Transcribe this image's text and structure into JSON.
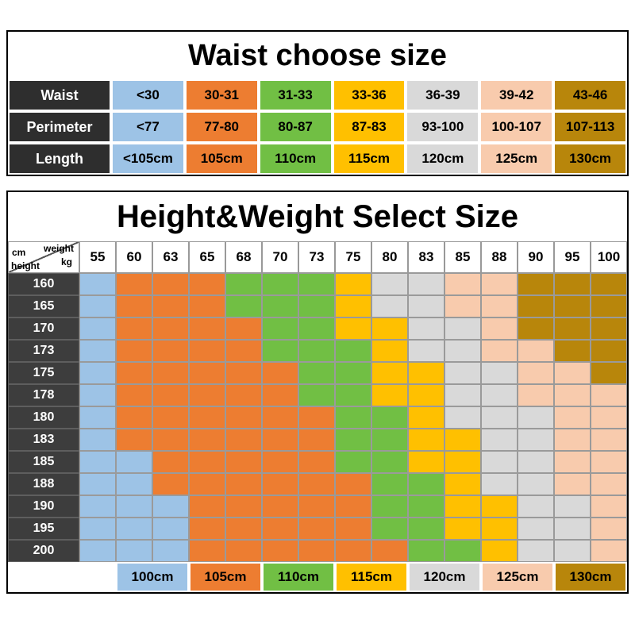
{
  "waist_table": {
    "title": "Waist choose size",
    "column_colors": [
      "#9DC3E6",
      "#ED7D31",
      "#71BF44",
      "#FFC000",
      "#D9D9D9",
      "#F8CBAD",
      "#B8860B"
    ],
    "rows": [
      {
        "label": "Waist",
        "values": [
          "<30",
          "30-31",
          "31-33",
          "33-36",
          "36-39",
          "39-42",
          "43-46"
        ]
      },
      {
        "label": "Perimeter",
        "values": [
          "<77",
          "77-80",
          "80-87",
          "87-83",
          "93-100",
          "100-107",
          "107-113"
        ]
      },
      {
        "label": "Length",
        "values": [
          "<105cm",
          "105cm",
          "110cm",
          "115cm",
          "120cm",
          "125cm",
          "130cm"
        ]
      }
    ]
  },
  "size_table": {
    "title": "Height&Weight Select Size",
    "corner": {
      "top_label": "weight",
      "top_unit": "kg",
      "side_unit": "cm",
      "side_label": "height"
    },
    "weights": [
      "55",
      "60",
      "63",
      "65",
      "68",
      "70",
      "73",
      "75",
      "80",
      "83",
      "85",
      "88",
      "90",
      "95",
      "100"
    ],
    "heights": [
      "160",
      "165",
      "170",
      "173",
      "175",
      "178",
      "180",
      "183",
      "185",
      "188",
      "190",
      "195",
      "200"
    ],
    "codes": {
      "B": "#9DC3E6",
      "O": "#ED7D31",
      "G": "#71BF44",
      "Y": "#FFC000",
      "E": "#D9D9D9",
      "S": "#F8CBAD",
      "D": "#B8860B"
    },
    "matrix": [
      "BOOOGGGYEESSDDD",
      "BOOOGGGYEESSDDD",
      "BOOOOGGYYEESDDD",
      "BOOOOGGGYEESSDD",
      "BOOOOOGGYYEESSD",
      "BOOOOOGGYYEESSS",
      "BOOOOOOGGYEEESS",
      "BOOOOOOGGYYEESS",
      "BBOOOOOGGYYEESS",
      "BBOOOOOOGGYEESS",
      "BBBOOOOOGGYYEES",
      "BBBOOOOOGGYYEES",
      "BBBOOOOOOGGYEES"
    ],
    "legend": [
      {
        "label": "100cm",
        "color": "#9DC3E6"
      },
      {
        "label": "105cm",
        "color": "#ED7D31"
      },
      {
        "label": "110cm",
        "color": "#71BF44"
      },
      {
        "label": "115cm",
        "color": "#FFC000"
      },
      {
        "label": "120cm",
        "color": "#D9D9D9"
      },
      {
        "label": "125cm",
        "color": "#F8CBAD"
      },
      {
        "label": "130cm",
        "color": "#B8860B"
      }
    ]
  },
  "chart_data": [
    {
      "type": "table",
      "title": "Waist choose size",
      "rows": [
        [
          "Waist",
          "<30",
          "30-31",
          "31-33",
          "33-36",
          "36-39",
          "39-42",
          "43-46"
        ],
        [
          "Perimeter",
          "<77",
          "77-80",
          "80-87",
          "87-83",
          "93-100",
          "100-107",
          "107-113"
        ],
        [
          "Length",
          "<105cm",
          "105cm",
          "110cm",
          "115cm",
          "120cm",
          "125cm",
          "130cm"
        ]
      ]
    },
    {
      "type": "heatmap",
      "title": "Height&Weight Select Size",
      "xlabel": "weight kg",
      "ylabel": "cm height",
      "x": [
        55,
        60,
        63,
        65,
        68,
        70,
        73,
        75,
        80,
        83,
        85,
        88,
        90,
        95,
        100
      ],
      "y": [
        160,
        165,
        170,
        173,
        175,
        178,
        180,
        183,
        185,
        188,
        190,
        195,
        200
      ],
      "code_map": {
        "B": "100cm",
        "O": "105cm",
        "G": "110cm",
        "Y": "115cm",
        "E": "120cm",
        "S": "125cm",
        "D": "130cm"
      },
      "rows": [
        "BOOOGGGYEESSDDD",
        "BOOOGGGYEESSDDD",
        "BOOOOGGYYEESDDD",
        "BOOOOGGGYEESSDD",
        "BOOOOOGGYYEESSD",
        "BOOOOOGGYYEESSS",
        "BOOOOOOGGYEEESS",
        "BOOOOOOGGYYEESS",
        "BBOOOOOGGYYEESS",
        "BBOOOOOOGGYEESS",
        "BBBOOOOOGGYYEES",
        "BBBOOOOOGGYYEES",
        "BBBOOOOOOGGYEES"
      ],
      "legend": [
        "100cm",
        "105cm",
        "110cm",
        "115cm",
        "120cm",
        "125cm",
        "130cm"
      ],
      "legend_position": "bottom"
    }
  ]
}
